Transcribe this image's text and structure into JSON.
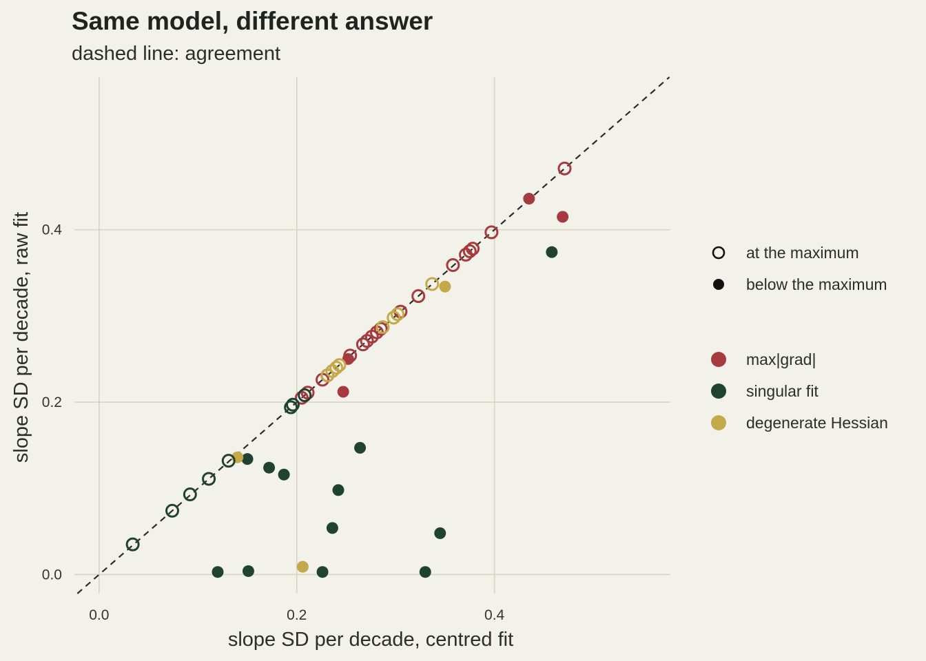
{
  "chart_data": {
    "type": "scatter",
    "title": "Same model, different answer",
    "subtitle": "dashed line: agreement",
    "xlabel": "slope SD per decade, centred fit",
    "ylabel": "slope SD per decade, raw fit",
    "xlim": [
      -0.025,
      0.578
    ],
    "ylim": [
      -0.022,
      0.577
    ],
    "x_ticks": [
      0.0,
      0.2,
      0.4
    ],
    "x_tick_labels": [
      "0.0",
      "0.2",
      "0.4"
    ],
    "y_ticks": [
      0.0,
      0.2,
      0.4
    ],
    "y_tick_labels": [
      "0.0",
      "0.2",
      "0.4"
    ],
    "grid": true,
    "reference_line": "y = x (dashed)",
    "legend_position": "right",
    "shape_legend": [
      {
        "label": "at the maximum",
        "marker": "open"
      },
      {
        "label": "below the maximum",
        "marker": "filled"
      }
    ],
    "color_legend": [
      {
        "label": "max|grad|",
        "color": "#a63a3e"
      },
      {
        "label": "singular fit",
        "color": "#1f4330"
      },
      {
        "label": "degenerate Hessian",
        "color": "#c4a94a"
      }
    ],
    "series": [
      {
        "name": "max|grad|",
        "color": "#a63a3e",
        "points": [
          {
            "x": 0.471,
            "y": 0.471,
            "at_max": true
          },
          {
            "x": 0.435,
            "y": 0.436,
            "at_max": false
          },
          {
            "x": 0.469,
            "y": 0.415,
            "at_max": false
          },
          {
            "x": 0.397,
            "y": 0.397,
            "at_max": true
          },
          {
            "x": 0.378,
            "y": 0.378,
            "at_max": true
          },
          {
            "x": 0.375,
            "y": 0.375,
            "at_max": true
          },
          {
            "x": 0.371,
            "y": 0.371,
            "at_max": true
          },
          {
            "x": 0.358,
            "y": 0.359,
            "at_max": true
          },
          {
            "x": 0.323,
            "y": 0.323,
            "at_max": true
          },
          {
            "x": 0.305,
            "y": 0.305,
            "at_max": true
          },
          {
            "x": 0.285,
            "y": 0.285,
            "at_max": true
          },
          {
            "x": 0.281,
            "y": 0.281,
            "at_max": true
          },
          {
            "x": 0.276,
            "y": 0.276,
            "at_max": true
          },
          {
            "x": 0.271,
            "y": 0.271,
            "at_max": true
          },
          {
            "x": 0.267,
            "y": 0.267,
            "at_max": true
          },
          {
            "x": 0.254,
            "y": 0.254,
            "at_max": true
          },
          {
            "x": 0.252,
            "y": 0.25,
            "at_max": false
          },
          {
            "x": 0.247,
            "y": 0.212,
            "at_max": false
          },
          {
            "x": 0.231,
            "y": 0.231,
            "at_max": true
          },
          {
            "x": 0.226,
            "y": 0.226,
            "at_max": true
          },
          {
            "x": 0.211,
            "y": 0.211,
            "at_max": true
          },
          {
            "x": 0.205,
            "y": 0.205,
            "at_max": true
          }
        ]
      },
      {
        "name": "singular fit",
        "color": "#1f4330",
        "points": [
          {
            "x": 0.458,
            "y": 0.374,
            "at_max": false
          },
          {
            "x": 0.208,
            "y": 0.208,
            "at_max": true
          },
          {
            "x": 0.196,
            "y": 0.197,
            "at_max": true
          },
          {
            "x": 0.194,
            "y": 0.194,
            "at_max": true
          },
          {
            "x": 0.131,
            "y": 0.132,
            "at_max": true
          },
          {
            "x": 0.111,
            "y": 0.111,
            "at_max": true
          },
          {
            "x": 0.092,
            "y": 0.093,
            "at_max": true
          },
          {
            "x": 0.074,
            "y": 0.074,
            "at_max": true
          },
          {
            "x": 0.034,
            "y": 0.035,
            "at_max": true
          },
          {
            "x": 0.15,
            "y": 0.134,
            "at_max": false
          },
          {
            "x": 0.172,
            "y": 0.124,
            "at_max": false
          },
          {
            "x": 0.187,
            "y": 0.116,
            "at_max": false
          },
          {
            "x": 0.264,
            "y": 0.147,
            "at_max": false
          },
          {
            "x": 0.242,
            "y": 0.098,
            "at_max": false
          },
          {
            "x": 0.236,
            "y": 0.054,
            "at_max": false
          },
          {
            "x": 0.345,
            "y": 0.048,
            "at_max": false
          },
          {
            "x": 0.12,
            "y": 0.003,
            "at_max": false
          },
          {
            "x": 0.151,
            "y": 0.004,
            "at_max": false
          },
          {
            "x": 0.226,
            "y": 0.003,
            "at_max": false
          },
          {
            "x": 0.33,
            "y": 0.003,
            "at_max": false
          }
        ]
      },
      {
        "name": "degenerate Hessian",
        "color": "#c4a94a",
        "points": [
          {
            "x": 0.337,
            "y": 0.337,
            "at_max": true
          },
          {
            "x": 0.35,
            "y": 0.334,
            "at_max": false
          },
          {
            "x": 0.302,
            "y": 0.302,
            "at_max": true
          },
          {
            "x": 0.298,
            "y": 0.298,
            "at_max": true
          },
          {
            "x": 0.287,
            "y": 0.287,
            "at_max": true
          },
          {
            "x": 0.243,
            "y": 0.243,
            "at_max": true
          },
          {
            "x": 0.24,
            "y": 0.24,
            "at_max": true
          },
          {
            "x": 0.236,
            "y": 0.236,
            "at_max": true
          },
          {
            "x": 0.231,
            "y": 0.231,
            "at_max": true
          },
          {
            "x": 0.14,
            "y": 0.136,
            "at_max": false
          },
          {
            "x": 0.206,
            "y": 0.009,
            "at_max": false
          }
        ]
      }
    ]
  }
}
